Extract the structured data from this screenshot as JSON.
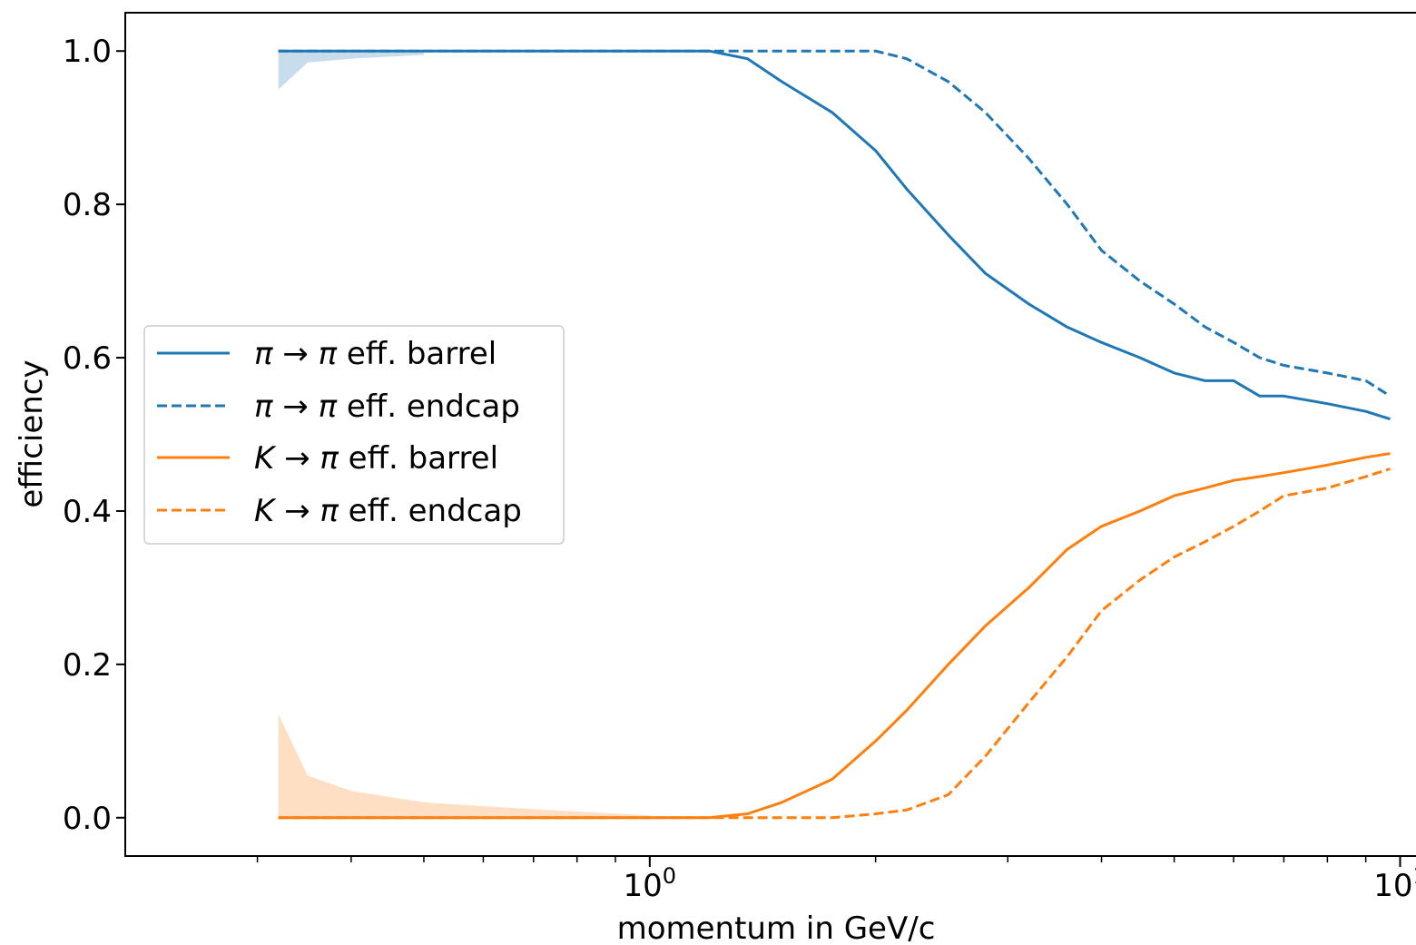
{
  "chart_data": {
    "type": "line",
    "xlabel": "momentum in GeV/c",
    "ylabel": "efficiency",
    "xscale": "log",
    "xlim": [
      0.2,
      10.5
    ],
    "ylim": [
      -0.05,
      1.05
    ],
    "grid": false,
    "legend_position": "center-left",
    "x_ticks": [
      {
        "value": 1,
        "base": "10",
        "exp": "0"
      },
      {
        "value": 10,
        "base": "10",
        "exp": "1"
      }
    ],
    "y_ticks": [
      {
        "value": 0.0,
        "label": "0.0"
      },
      {
        "value": 0.2,
        "label": "0.2"
      },
      {
        "value": 0.4,
        "label": "0.4"
      },
      {
        "value": 0.6,
        "label": "0.6"
      },
      {
        "value": 0.8,
        "label": "0.8"
      },
      {
        "value": 1.0,
        "label": "1.0"
      }
    ],
    "x": [
      0.32,
      0.4,
      0.5,
      0.6,
      0.8,
      1.0,
      1.2,
      1.35,
      1.5,
      1.75,
      2.0,
      2.2,
      2.5,
      2.8,
      3.2,
      3.6,
      4.0,
      4.5,
      5.0,
      5.5,
      6.0,
      6.5,
      7.0,
      8.0,
      9.0,
      9.7
    ],
    "series": [
      {
        "name_prefix": "π → π",
        "name_suffix": "eff. barrel",
        "color": "#1f77b4",
        "dash": "solid",
        "values": [
          1.0,
          1.0,
          1.0,
          1.0,
          1.0,
          1.0,
          1.0,
          0.99,
          0.96,
          0.92,
          0.87,
          0.82,
          0.76,
          0.71,
          0.67,
          0.64,
          0.62,
          0.6,
          0.58,
          0.57,
          0.57,
          0.55,
          0.55,
          0.54,
          0.53,
          0.52
        ]
      },
      {
        "name_prefix": "π → π",
        "name_suffix": "eff. endcap",
        "color": "#1f77b4",
        "dash": "dashed",
        "values": [
          1.0,
          1.0,
          1.0,
          1.0,
          1.0,
          1.0,
          1.0,
          1.0,
          1.0,
          1.0,
          1.0,
          0.99,
          0.96,
          0.92,
          0.86,
          0.8,
          0.74,
          0.7,
          0.67,
          0.64,
          0.62,
          0.6,
          0.59,
          0.58,
          0.57,
          0.55
        ]
      },
      {
        "name_prefix": "K → π",
        "name_suffix": "eff. barrel",
        "color": "#ff7f0e",
        "dash": "solid",
        "values": [
          0.0,
          0.0,
          0.0,
          0.0,
          0.0,
          0.0,
          0.0,
          0.005,
          0.02,
          0.05,
          0.1,
          0.14,
          0.2,
          0.25,
          0.3,
          0.35,
          0.38,
          0.4,
          0.42,
          0.43,
          0.44,
          0.445,
          0.45,
          0.46,
          0.47,
          0.475
        ]
      },
      {
        "name_prefix": "K → π",
        "name_suffix": "eff. endcap",
        "color": "#ff7f0e",
        "dash": "dashed",
        "values": [
          0.0,
          0.0,
          0.0,
          0.0,
          0.0,
          0.0,
          0.0,
          0.0,
          0.0,
          0.0,
          0.005,
          0.01,
          0.03,
          0.08,
          0.15,
          0.21,
          0.27,
          0.31,
          0.34,
          0.36,
          0.38,
          0.4,
          0.42,
          0.43,
          0.445,
          0.455
        ]
      }
    ],
    "bands": [
      {
        "series": 0,
        "x": [
          0.32,
          0.35,
          0.4,
          0.5
        ],
        "lower": [
          0.95,
          0.985,
          0.99,
          0.995
        ],
        "upper": [
          1.0,
          1.0,
          1.0,
          1.0
        ]
      },
      {
        "series": 2,
        "x": [
          0.32,
          0.35,
          0.4,
          0.5,
          0.6,
          0.8,
          1.0
        ],
        "lower": [
          0.0,
          0.0,
          0.0,
          0.0,
          0.0,
          0.0,
          0.0
        ],
        "upper": [
          0.135,
          0.055,
          0.035,
          0.02,
          0.015,
          0.008,
          0.003
        ]
      }
    ]
  }
}
